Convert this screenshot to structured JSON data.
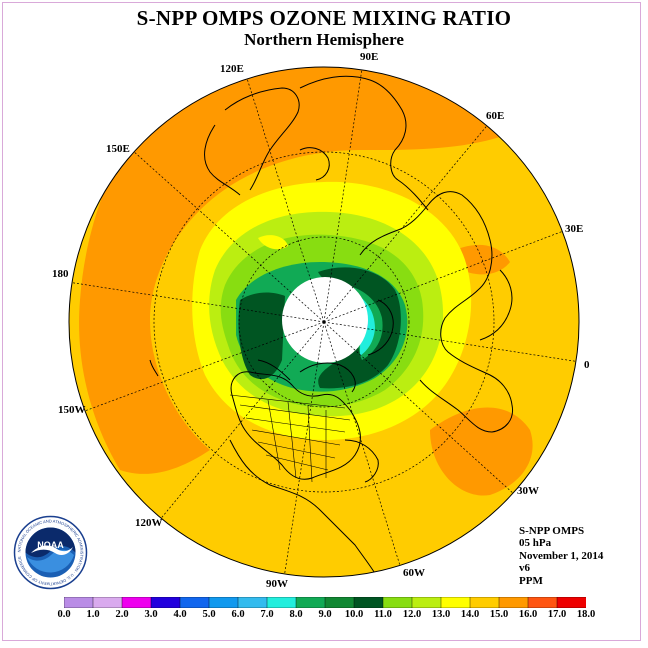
{
  "title": "S-NPP OMPS OZONE MIXING RATIO",
  "subtitle": "Northern Hemisphere",
  "longitude_labels": {
    "lon_90e": "90E",
    "lon_60e": "60E",
    "lon_30e": "30E",
    "lon_0": "0",
    "lon_30w": "30W",
    "lon_60w": "60W",
    "lon_90w": "90W",
    "lon_120w": "120W",
    "lon_150w": "150W",
    "lon_180": "180",
    "lon_150e": "150E",
    "lon_120e": "120E"
  },
  "info": {
    "instrument": "S-NPP OMPS",
    "level": "05 hPa",
    "date": "November 1, 2014",
    "version": "v6",
    "units": "PPM"
  },
  "colorbar": {
    "ticks": [
      "0.0",
      "1.0",
      "2.0",
      "3.0",
      "4.0",
      "5.0",
      "6.0",
      "7.0",
      "8.0",
      "9.0",
      "10.0",
      "11.0",
      "12.0",
      "13.0",
      "14.0",
      "15.0",
      "16.0",
      "17.0",
      "18.0"
    ],
    "colors": [
      "#b98ce6",
      "#d9aaee",
      "#ee00ee",
      "#2200dd",
      "#1166ee",
      "#1199ee",
      "#33bbee",
      "#22eedd",
      "#11aa55",
      "#118833",
      "#005522",
      "#88dd11",
      "#bbee11",
      "#ffff00",
      "#ffcc00",
      "#ff9900",
      "#ff5511",
      "#ee0000",
      "#885533"
    ]
  },
  "logo": {
    "emblem_text": "NOAA",
    "ring_text": "NATIONAL OCEANIC AND ATMOSPHERIC ADMINISTRATION · U.S. DEPARTMENT OF COMMERCE"
  },
  "map_colors": {
    "orange": "#ff9900",
    "gold": "#ffcc00",
    "yellow": "#ffff00",
    "yellowgreen": "#bbee11",
    "lightgreen": "#88dd11",
    "green": "#11aa55",
    "darkgreen": "#005522",
    "cyan": "#22eedd",
    "polar_hole": "#ffffff"
  }
}
